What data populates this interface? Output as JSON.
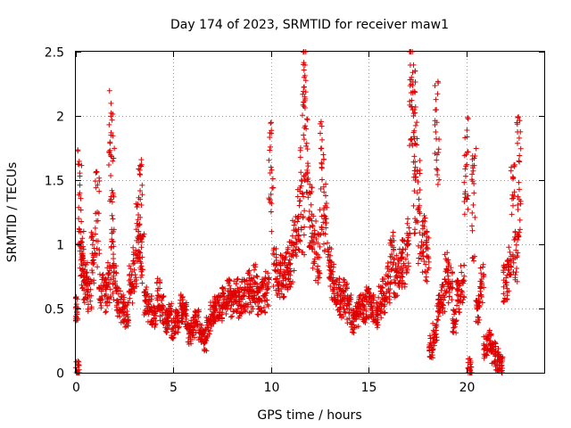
{
  "chart_data": {
    "type": "scatter",
    "title": "Day 174 of 2023, SRMTID for receiver maw1",
    "xlabel": "GPS time / hours",
    "ylabel": "SRMTID / TECUs",
    "xlim": [
      0,
      24
    ],
    "ylim": [
      0,
      2.5
    ],
    "x_ticks": [
      0,
      5,
      10,
      15,
      20
    ],
    "x_tick_labels": [
      "0",
      "5",
      "10",
      "15",
      "20"
    ],
    "y_ticks": [
      0,
      0.5,
      1,
      1.5,
      2,
      2.5
    ],
    "y_tick_labels": [
      "0",
      "0.5",
      "1",
      "1.5",
      "2",
      "2.5"
    ],
    "grid": true,
    "marker": "+",
    "color": "#e00000",
    "series": [
      {
        "name": "maw1",
        "x": [
          0.0,
          0.1,
          0.2,
          0.3,
          0.4,
          0.5,
          0.7,
          0.9,
          1.1,
          1.3,
          1.5,
          1.7,
          1.8,
          1.9,
          2.0,
          2.2,
          2.4,
          2.6,
          2.8,
          3.0,
          3.2,
          3.3,
          3.4,
          3.6,
          3.8,
          4.0,
          4.2,
          4.4,
          4.6,
          4.8,
          5.0,
          5.2,
          5.4,
          5.6,
          5.8,
          6.0,
          6.2,
          6.4,
          6.6,
          6.8,
          7.0,
          7.2,
          7.4,
          7.6,
          7.8,
          8.0,
          8.2,
          8.4,
          8.6,
          8.8,
          9.0,
          9.2,
          9.4,
          9.6,
          9.8,
          10.0,
          10.2,
          10.4,
          10.6,
          10.8,
          11.0,
          11.2,
          11.4,
          11.6,
          11.7,
          11.8,
          12.0,
          12.2,
          12.4,
          12.6,
          12.8,
          13.0,
          13.2,
          13.4,
          13.6,
          13.8,
          14.0,
          14.2,
          14.4,
          14.6,
          14.8,
          15.0,
          15.2,
          15.4,
          15.6,
          15.8,
          16.0,
          16.2,
          16.4,
          16.6,
          16.8,
          17.0,
          17.2,
          17.3,
          17.4,
          17.6,
          17.8,
          18.0,
          18.2,
          18.4,
          18.5,
          18.6,
          18.8,
          19.0,
          19.2,
          19.4,
          19.6,
          19.8,
          20.0,
          20.2,
          20.4,
          20.6,
          20.8,
          21.0,
          21.2,
          21.4,
          21.6,
          21.8,
          22.0,
          22.2,
          22.4,
          22.6,
          22.7
        ],
        "y": [
          0.5,
          0.02,
          1.4,
          0.9,
          0.75,
          0.7,
          0.6,
          0.9,
          1.25,
          0.65,
          0.6,
          0.7,
          1.85,
          1.4,
          0.7,
          0.55,
          0.5,
          0.45,
          0.7,
          0.8,
          1.1,
          1.35,
          0.9,
          0.55,
          0.5,
          0.45,
          0.6,
          0.5,
          0.4,
          0.45,
          0.35,
          0.4,
          0.5,
          0.45,
          0.3,
          0.35,
          0.4,
          0.3,
          0.25,
          0.35,
          0.45,
          0.5,
          0.5,
          0.55,
          0.6,
          0.55,
          0.6,
          0.55,
          0.6,
          0.65,
          0.6,
          0.7,
          0.55,
          0.6,
          0.65,
          1.6,
          0.8,
          0.7,
          0.75,
          0.8,
          0.85,
          1.0,
          1.2,
          1.4,
          2.3,
          1.9,
          1.2,
          1.0,
          0.9,
          1.6,
          1.2,
          0.8,
          0.7,
          0.6,
          0.55,
          0.6,
          0.5,
          0.4,
          0.45,
          0.5,
          0.5,
          0.55,
          0.5,
          0.45,
          0.55,
          0.6,
          0.7,
          0.9,
          0.75,
          0.8,
          0.85,
          1.0,
          2.3,
          2.0,
          1.6,
          1.3,
          1.0,
          0.9,
          0.2,
          0.3,
          1.95,
          0.5,
          0.6,
          0.8,
          0.7,
          0.4,
          0.6,
          0.7,
          1.7,
          0.02,
          1.4,
          0.5,
          0.7,
          0.2,
          0.25,
          0.15,
          0.1,
          0.05,
          0.7,
          0.8,
          1.3,
          0.9,
          1.65
        ]
      }
    ]
  }
}
